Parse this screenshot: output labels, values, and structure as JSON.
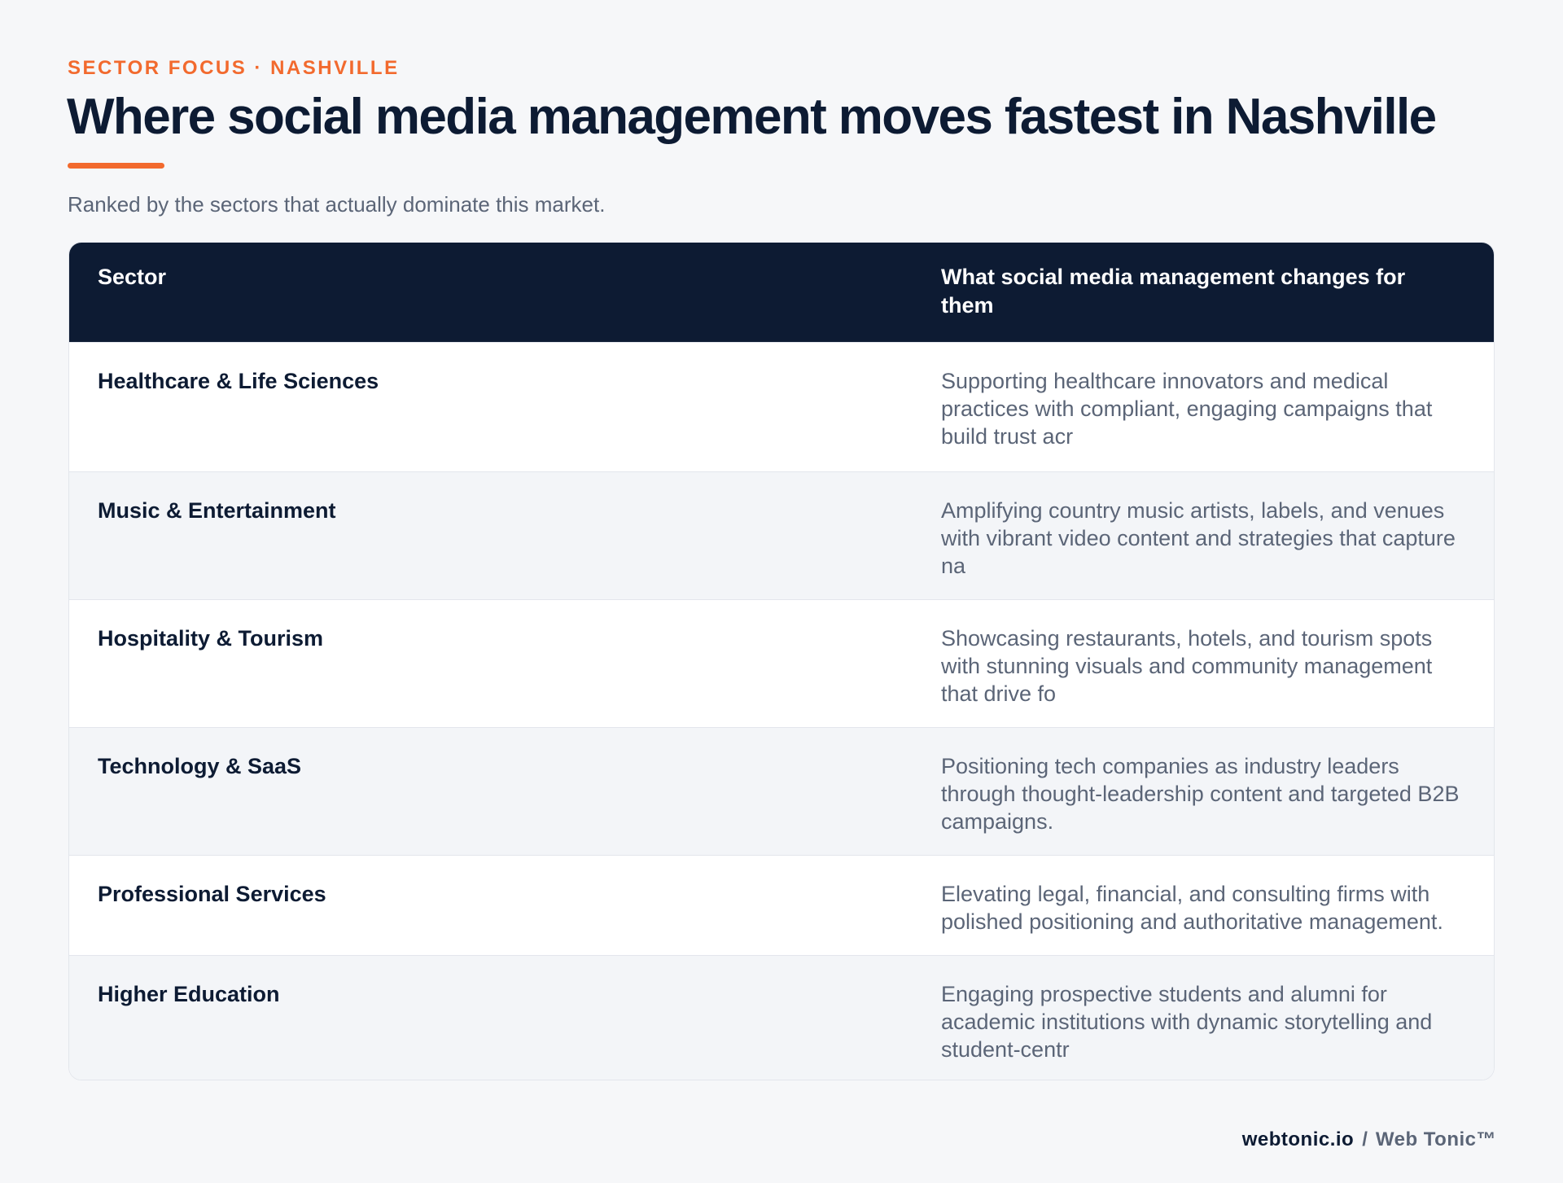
{
  "header": {
    "eyebrow": "SECTOR FOCUS · NASHVILLE",
    "title": "Where social media management moves fastest in Nashville",
    "subtitle": "Ranked by the sectors that actually dominate this market."
  },
  "table": {
    "columns": [
      "Sector",
      "What social media management changes for them"
    ],
    "rows": [
      {
        "sector": "Healthcare & Life Sciences",
        "description": "Supporting healthcare innovators and medical practices with compliant, engaging campaigns that build trust acr"
      },
      {
        "sector": "Music & Entertainment",
        "description": "Amplifying country music artists, labels, and venues with vibrant video content and strategies that capture na"
      },
      {
        "sector": "Hospitality & Tourism",
        "description": "Showcasing restaurants, hotels, and tourism spots with stunning visuals and community management that drive fo"
      },
      {
        "sector": "Technology & SaaS",
        "description": "Positioning tech companies as industry leaders through thought-leadership content and targeted B2B campaigns."
      },
      {
        "sector": "Professional Services",
        "description": "Elevating legal, financial, and consulting firms with polished positioning and authoritative management."
      },
      {
        "sector": "Higher Education",
        "description": "Engaging prospective students and alumni for academic institutions with dynamic storytelling and student-centr"
      }
    ]
  },
  "footer": {
    "domain": "webtonic.io",
    "separator": "/",
    "brand": "Web Tonic™"
  },
  "colors": {
    "accent": "#f26a2e",
    "navy": "#0d1b33",
    "muted_text": "#5b6577",
    "page_background": "#f6f7f9"
  }
}
